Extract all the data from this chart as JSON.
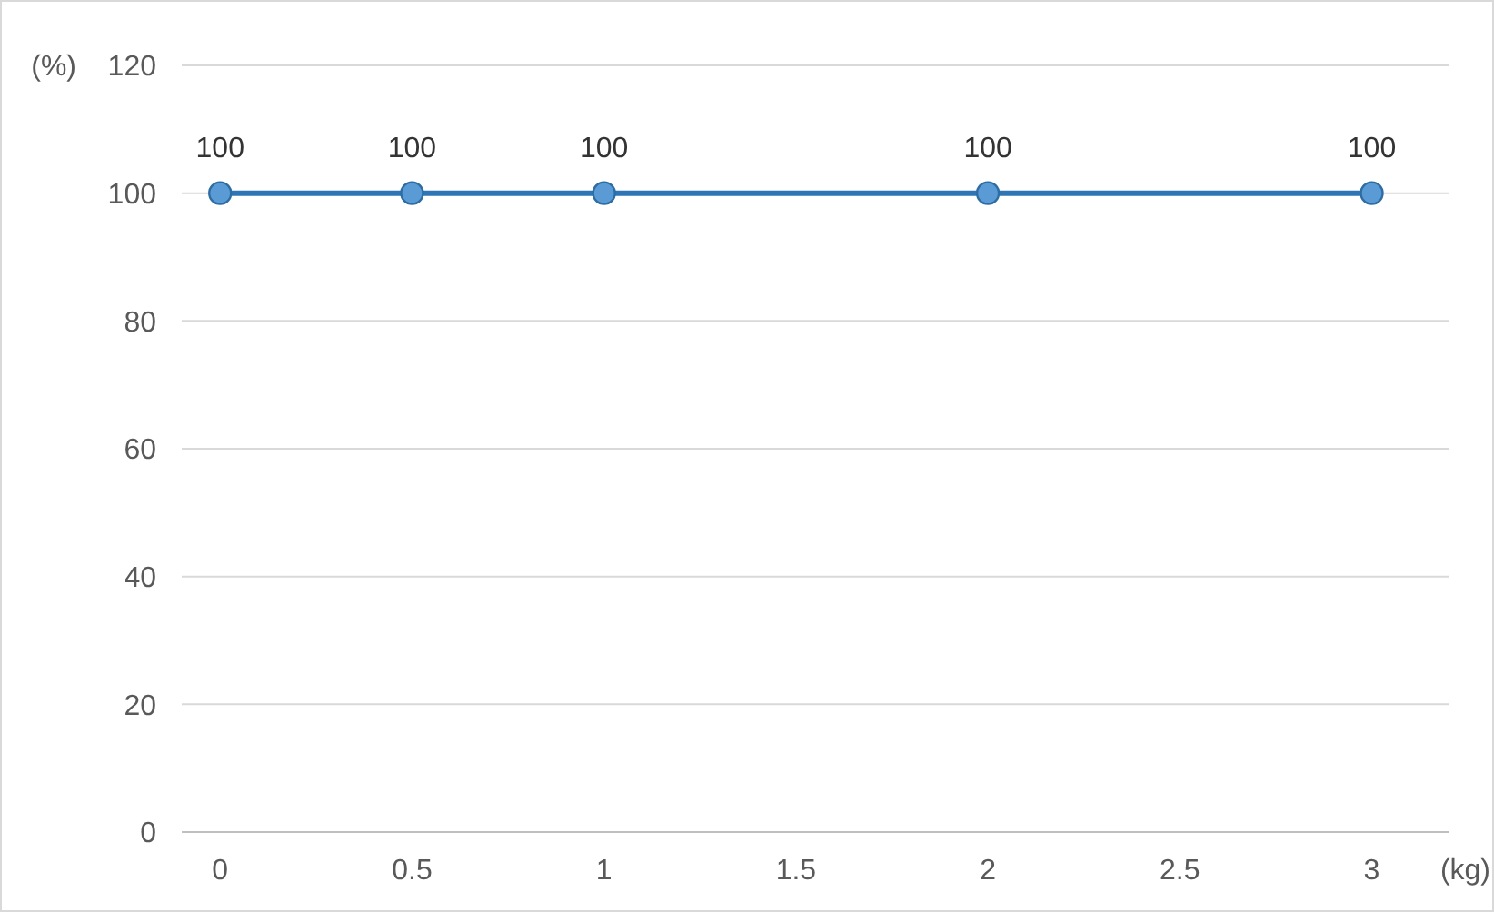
{
  "chart_data": {
    "type": "line",
    "xlabel": "(kg)",
    "ylabel": "(%)",
    "x": [
      0,
      0.5,
      1,
      2,
      3
    ],
    "series": [
      {
        "color": "#2e75b6",
        "values": [
          100,
          100,
          100,
          100,
          100
        ]
      }
    ],
    "xlim": [
      -0.1,
      3.2
    ],
    "xticks": [
      0,
      0.5,
      1,
      1.5,
      2,
      2.5,
      3
    ],
    "ylim": [
      0,
      120
    ],
    "yticks": [
      0,
      20,
      40,
      60,
      80,
      100,
      120
    ],
    "grid": "y",
    "marker": "circle",
    "line_style": "solid",
    "data_labels": true
  }
}
